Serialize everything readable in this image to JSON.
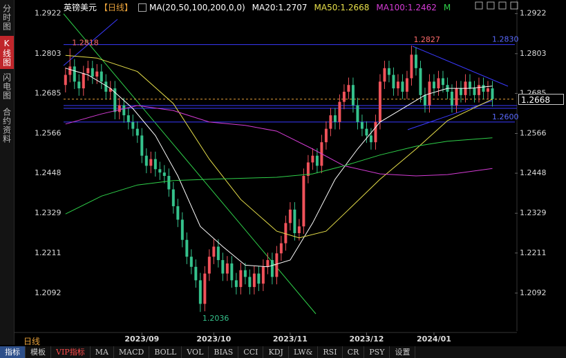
{
  "header": {
    "symbol": "英镑美元",
    "period": "【日线】",
    "indicator": "MA(20,50,100,200,0,0)"
  },
  "side_tabs": [
    "分时图",
    "K线图",
    "闪电图",
    "合约资料"
  ],
  "chart_data": {
    "type": "candlestick",
    "open": [
      1.271,
      1.274,
      1.2765,
      1.272,
      1.27,
      1.2745,
      1.276,
      1.2735,
      1.275,
      1.272,
      1.269,
      1.27,
      1.263,
      1.265,
      1.262,
      1.26,
      1.258,
      1.256,
      1.25,
      1.247,
      1.249,
      1.246,
      1.245,
      1.244,
      1.24,
      1.235,
      1.231,
      1.225,
      1.22,
      1.217,
      1.213,
      1.206,
      1.215,
      1.22,
      1.223,
      1.219,
      1.215,
      1.218,
      1.213,
      1.211,
      1.216,
      1.214,
      1.211,
      1.215,
      1.212,
      1.217,
      1.219,
      1.214,
      1.221,
      1.224,
      1.23,
      1.234,
      1.227,
      1.229,
      1.244,
      1.248,
      1.25,
      1.247,
      1.254,
      1.258,
      1.262,
      1.26,
      1.266,
      1.269,
      1.271,
      1.265,
      1.26,
      1.258,
      1.256,
      1.254,
      1.26,
      1.272,
      1.276,
      1.274,
      1.27,
      1.272,
      1.269,
      1.273,
      1.28,
      1.276,
      1.268,
      1.265,
      1.272,
      1.27,
      1.273,
      1.271,
      1.269,
      1.265,
      1.27,
      1.268,
      1.272,
      1.27,
      1.268,
      1.271,
      1.269,
      1.27
    ],
    "high": [
      1.2762,
      1.2818,
      1.2787,
      1.2742,
      1.2767,
      1.2782,
      1.2782,
      1.2772,
      1.2772,
      1.2742,
      1.2722,
      1.2722,
      1.2672,
      1.2672,
      1.2642,
      1.2622,
      1.2602,
      1.2582,
      1.2522,
      1.2512,
      1.2512,
      1.2482,
      1.2472,
      1.2462,
      1.2422,
      1.2372,
      1.2332,
      1.2272,
      1.2222,
      1.2192,
      1.2152,
      1.2172,
      1.2222,
      1.2252,
      1.2252,
      1.2212,
      1.2202,
      1.2202,
      1.2152,
      1.2182,
      1.2182,
      1.2162,
      1.2172,
      1.2172,
      1.2192,
      1.2212,
      1.2212,
      1.2232,
      1.2262,
      1.2322,
      1.2362,
      1.2362,
      1.2312,
      1.2462,
      1.2502,
      1.2522,
      1.2522,
      1.2562,
      1.2602,
      1.2642,
      1.2642,
      1.2682,
      1.2712,
      1.2732,
      1.2732,
      1.2672,
      1.2622,
      1.2602,
      1.2582,
      1.2622,
      1.2742,
      1.2782,
      1.2782,
      1.2762,
      1.2742,
      1.2742,
      1.2752,
      1.2827,
      1.2822,
      1.2782,
      1.2702,
      1.2742,
      1.2742,
      1.2752,
      1.2752,
      1.2732,
      1.2712,
      1.2722,
      1.2722,
      1.2742,
      1.2742,
      1.2722,
      1.2732,
      1.2732,
      1.2722,
      1.2722
    ],
    "low": [
      1.2688,
      1.2718,
      1.2698,
      1.2678,
      1.2678,
      1.2723,
      1.2713,
      1.2713,
      1.2698,
      1.2668,
      1.2668,
      1.2608,
      1.2608,
      1.2598,
      1.2578,
      1.2558,
      1.2538,
      1.2478,
      1.2448,
      1.2448,
      1.2438,
      1.2428,
      1.2418,
      1.2378,
      1.2328,
      1.2288,
      1.2228,
      1.2178,
      1.2148,
      1.2108,
      1.2036,
      1.2038,
      1.2128,
      1.2178,
      1.2168,
      1.2128,
      1.2128,
      1.2108,
      1.2088,
      1.2088,
      1.2118,
      1.2088,
      1.2088,
      1.2098,
      1.2098,
      1.2148,
      1.2118,
      1.2118,
      1.2188,
      1.2218,
      1.2278,
      1.2248,
      1.2248,
      1.2268,
      1.2418,
      1.2458,
      1.2448,
      1.2448,
      1.2518,
      1.2558,
      1.2578,
      1.2578,
      1.2638,
      1.2668,
      1.2628,
      1.2578,
      1.2558,
      1.2538,
      1.2518,
      1.2518,
      1.2578,
      1.2698,
      1.2718,
      1.2678,
      1.2678,
      1.2668,
      1.2668,
      1.2708,
      1.2738,
      1.2658,
      1.2628,
      1.2628,
      1.2678,
      1.2678,
      1.2688,
      1.2668,
      1.2628,
      1.2628,
      1.2658,
      1.2658,
      1.2678,
      1.2658,
      1.2658,
      1.2668,
      1.2668,
      1.2646
    ],
    "close": [
      1.274,
      1.2765,
      1.272,
      1.27,
      1.2745,
      1.276,
      1.2735,
      1.275,
      1.272,
      1.269,
      1.27,
      1.263,
      1.265,
      1.262,
      1.26,
      1.258,
      1.256,
      1.25,
      1.247,
      1.249,
      1.246,
      1.245,
      1.244,
      1.24,
      1.235,
      1.231,
      1.225,
      1.22,
      1.217,
      1.213,
      1.206,
      1.215,
      1.22,
      1.223,
      1.219,
      1.215,
      1.218,
      1.213,
      1.211,
      1.216,
      1.214,
      1.211,
      1.215,
      1.212,
      1.217,
      1.219,
      1.214,
      1.221,
      1.224,
      1.23,
      1.234,
      1.227,
      1.229,
      1.244,
      1.248,
      1.25,
      1.247,
      1.254,
      1.258,
      1.262,
      1.26,
      1.266,
      1.269,
      1.271,
      1.265,
      1.26,
      1.258,
      1.256,
      1.254,
      1.26,
      1.272,
      1.276,
      1.274,
      1.27,
      1.272,
      1.269,
      1.273,
      1.28,
      1.276,
      1.268,
      1.265,
      1.272,
      1.27,
      1.273,
      1.271,
      1.269,
      1.265,
      1.27,
      1.268,
      1.272,
      1.27,
      1.268,
      1.271,
      1.269,
      1.27,
      1.2668
    ],
    "up_color": "#f0525a",
    "down_color": "#35c28c",
    "ylim": [
      1.1975,
      1.2946
    ],
    "yticks": [
      1.2922,
      1.2803,
      1.2685,
      1.2566,
      1.2448,
      1.2329,
      1.2211,
      1.2092
    ],
    "xlim": [
      -11.5,
      100
    ],
    "xticks": [
      {
        "value": 17,
        "label": "2023/09"
      },
      {
        "value": 33,
        "label": "2023/10"
      },
      {
        "value": 50,
        "label": "2023/11"
      },
      {
        "value": 67,
        "label": "2023/12"
      },
      {
        "value": 82,
        "label": "2024/01"
      }
    ],
    "grid": false,
    "lines": [
      {
        "name": "MA20:1.2707",
        "color": "#ffffff",
        "x": [
          0,
          5,
          10,
          15,
          20,
          25,
          30,
          35,
          40,
          45,
          50,
          55,
          60,
          65,
          70,
          75,
          80,
          85,
          90,
          95
        ],
        "values": [
          1.276,
          1.274,
          1.27,
          1.264,
          1.256,
          1.244,
          1.229,
          1.223,
          1.2175,
          1.217,
          1.219,
          1.23,
          1.243,
          1.252,
          1.26,
          1.264,
          1.268,
          1.27,
          1.27,
          1.2707
        ]
      },
      {
        "name": "MA50:1.2668",
        "color": "#e8e04a",
        "x": [
          0,
          7,
          16,
          24,
          32,
          39,
          47,
          52,
          58,
          62,
          70,
          78,
          85,
          95
        ],
        "values": [
          1.2798,
          1.279,
          1.275,
          1.2655,
          1.249,
          1.237,
          1.2276,
          1.2256,
          1.2276,
          1.2327,
          1.243,
          1.252,
          1.2604,
          1.2668
        ]
      },
      {
        "name": "MA100:1.2462",
        "color": "#d63cd6",
        "x": [
          0,
          8,
          16,
          24,
          32,
          40,
          47,
          55,
          62,
          70,
          78,
          85,
          95
        ],
        "values": [
          1.2594,
          1.2624,
          1.2649,
          1.2634,
          1.26,
          1.259,
          1.2573,
          1.252,
          1.247,
          1.2446,
          1.244,
          1.2444,
          1.2462
        ]
      },
      {
        "name": "M",
        "color": "#2fd14a",
        "x": [
          0,
          8,
          16,
          24,
          32,
          47,
          55,
          62,
          70,
          78,
          85,
          95
        ],
        "values": [
          1.2327,
          1.238,
          1.2413,
          1.2426,
          1.243,
          1.2436,
          1.2446,
          1.247,
          1.2502,
          1.2528,
          1.2543,
          1.2553
        ]
      }
    ],
    "levels": [
      {
        "value": 1.283,
        "label": "1.2830"
      },
      {
        "value": 1.26,
        "label": "1.2600"
      }
    ],
    "extremes": [
      1.2818,
      1.2036,
      1.2827
    ]
  },
  "footer": {
    "period": "日线",
    "tabs": [
      "指标",
      "模板",
      "VIP指标",
      "MA",
      "MACD",
      "BOLL",
      "VOL",
      "BIAS",
      "CCI",
      "KDJ",
      "LW&",
      "RSI",
      "CR",
      "PSY",
      "设置"
    ]
  }
}
